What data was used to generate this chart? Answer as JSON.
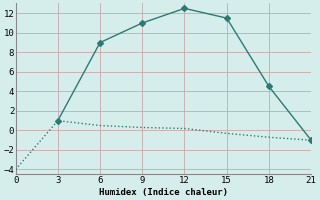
{
  "xlabel": "Humidex (Indice chaleur)",
  "line1_x": [
    3,
    6,
    9,
    12,
    15,
    18,
    21
  ],
  "line1_y": [
    1,
    9,
    11,
    12.5,
    11.5,
    4.5,
    -1
  ],
  "line2_x": [
    0,
    3,
    6,
    9,
    12,
    15,
    18,
    21
  ],
  "line2_y": [
    -4,
    1,
    0.5,
    0.3,
    0.2,
    -0.3,
    -0.7,
    -1
  ],
  "line_color": "#2d7a72",
  "bg_color": "#d6eeeb",
  "grid_color": "#c8dedd",
  "xlim": [
    0,
    21
  ],
  "ylim": [
    -4.5,
    13
  ],
  "xticks": [
    0,
    3,
    6,
    9,
    12,
    15,
    18,
    21
  ],
  "yticks": [
    -4,
    -2,
    0,
    2,
    4,
    6,
    8,
    10,
    12
  ]
}
